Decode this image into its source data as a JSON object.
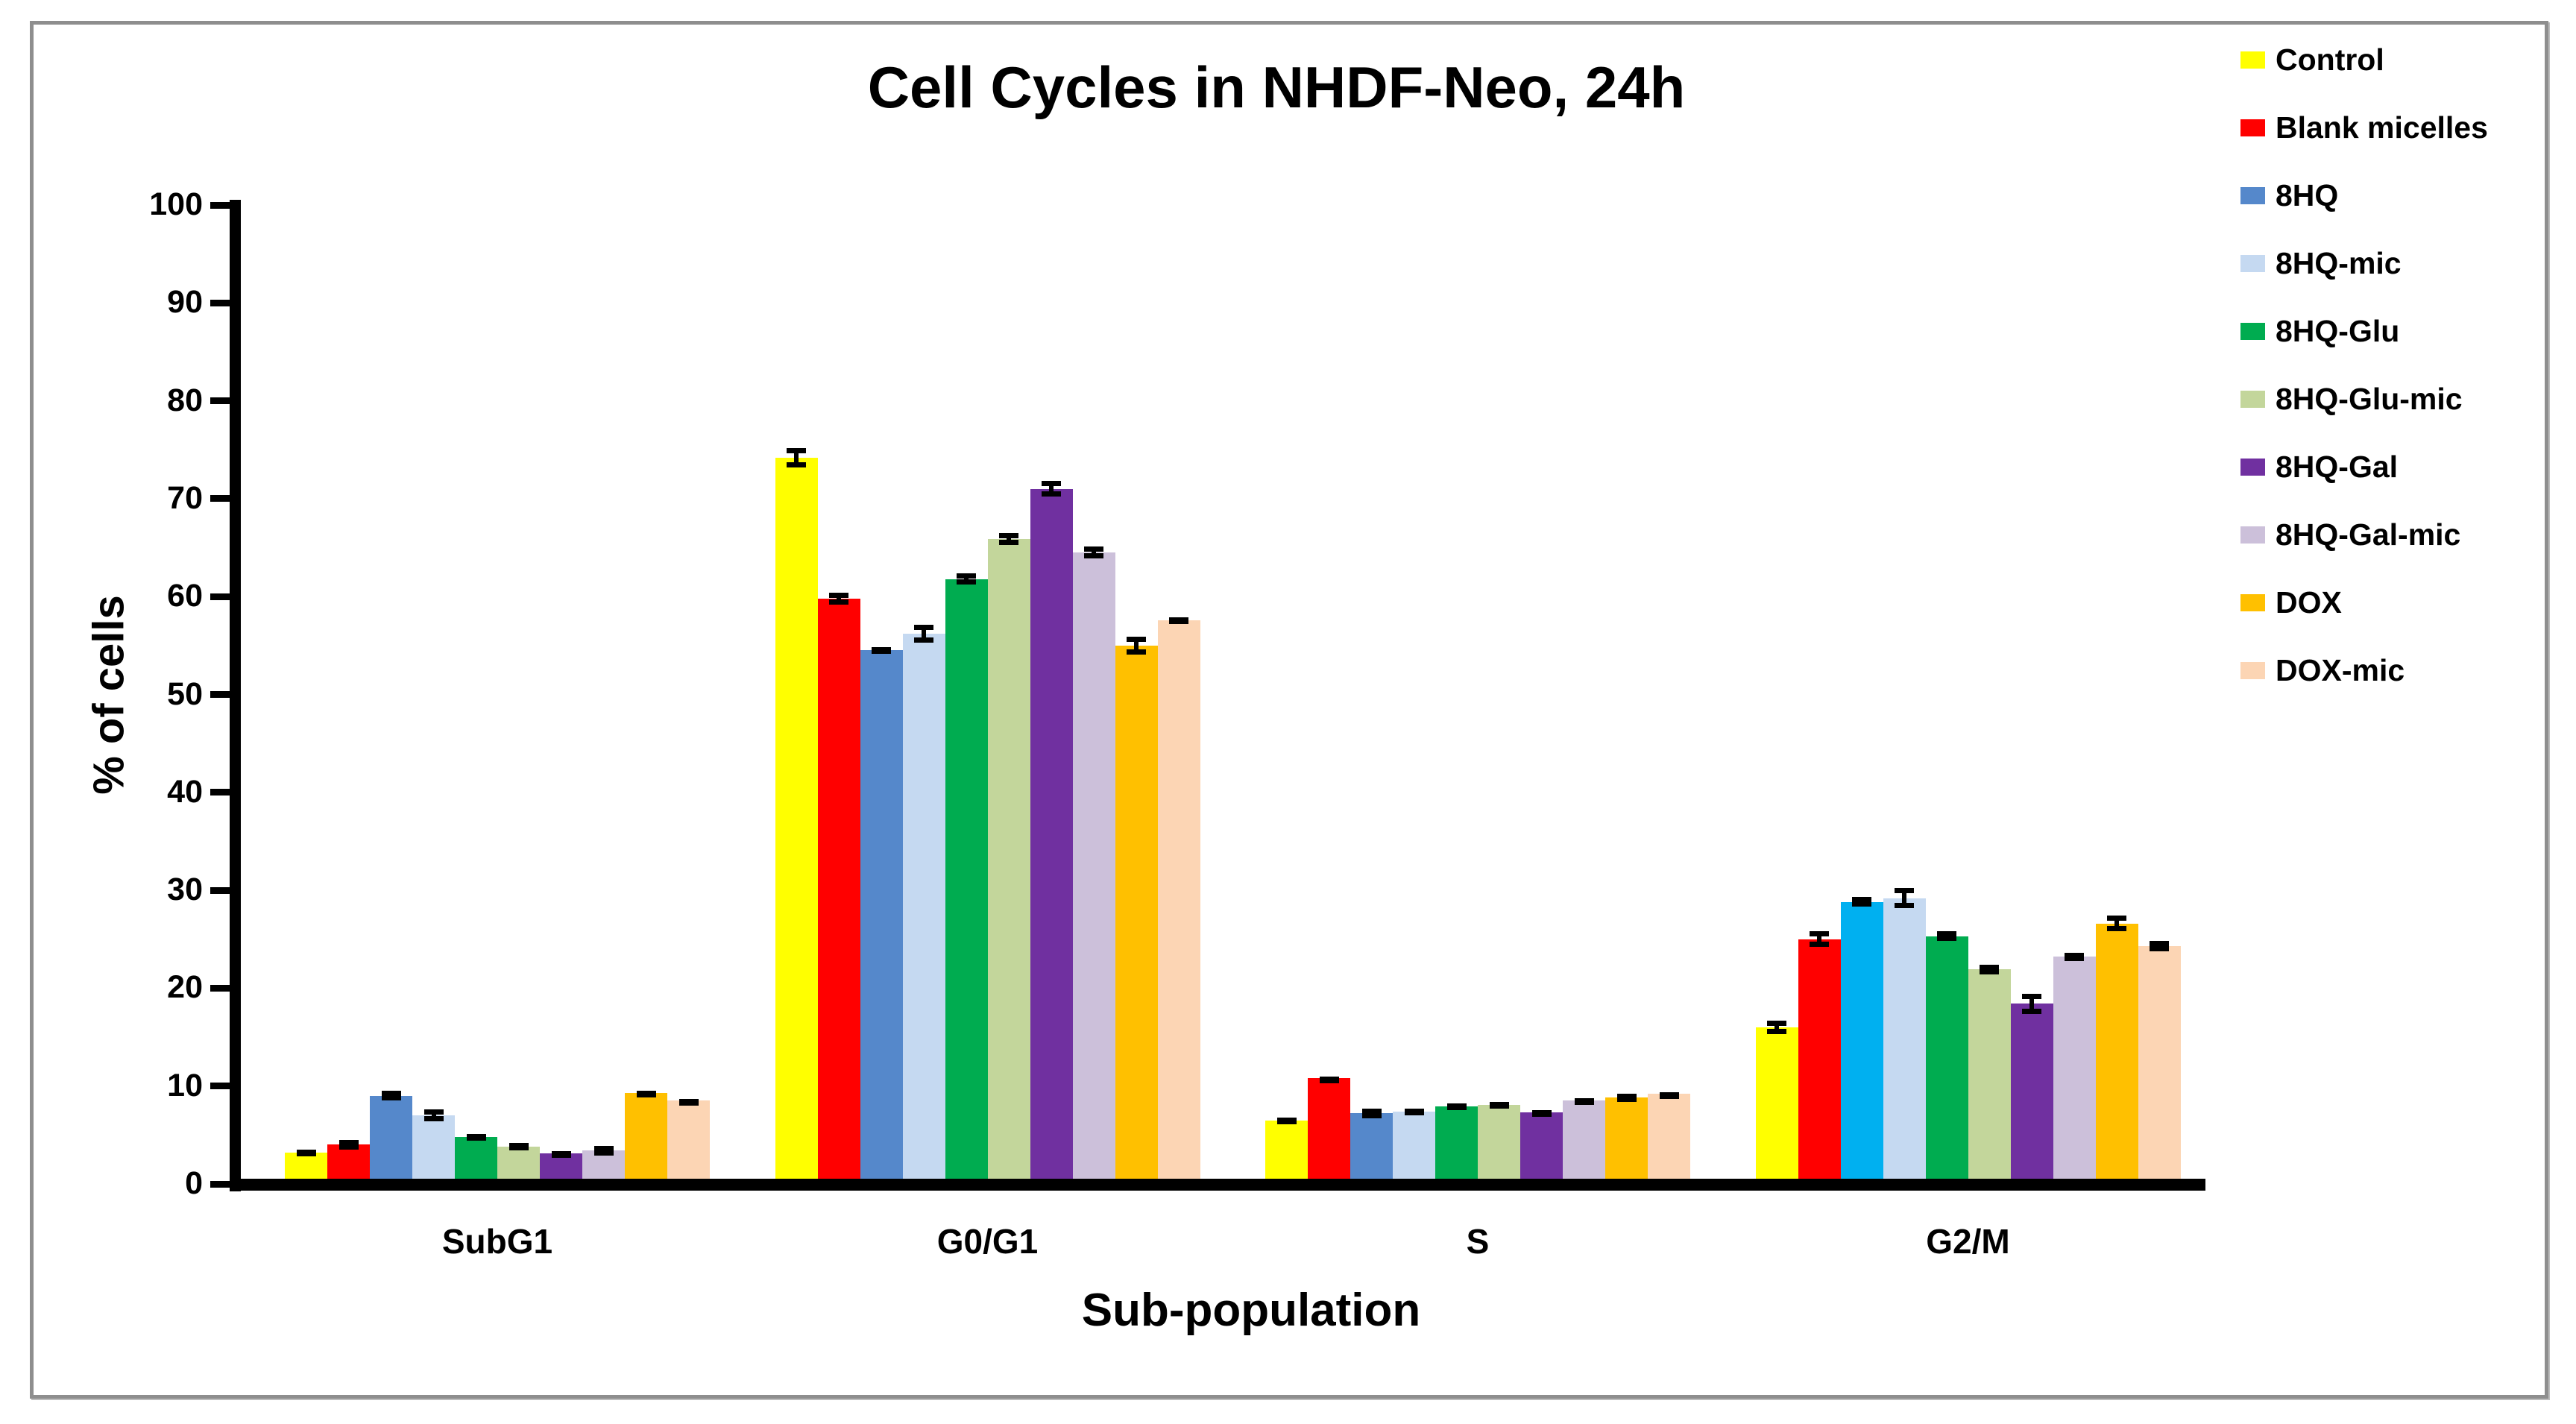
{
  "figure": {
    "type_label": "grouped bar chart with error bars",
    "frame_color": "#8e8e8e",
    "background": "#ffffff"
  },
  "chart_data": {
    "type": "bar",
    "title": "Cell Cycles in NHDF-Neo, 24h",
    "xlabel": "Sub-population",
    "ylabel": "% of cells",
    "ylim": [
      0,
      100
    ],
    "yticks": [
      0,
      10,
      20,
      30,
      40,
      50,
      60,
      70,
      80,
      90,
      100
    ],
    "grid": false,
    "legend_position": "right",
    "error_bars": true,
    "categories": [
      "SubG1",
      "G0/G1",
      "S",
      "G2/M"
    ],
    "series": [
      {
        "name": "Control",
        "color": "#FFFF00",
        "values": [
          3.2,
          74.2,
          6.5,
          16.0
        ],
        "errors": [
          0.3,
          1.0,
          0.3,
          0.7
        ]
      },
      {
        "name": "Blank micelles",
        "color": "#FF0000",
        "values": [
          4.0,
          59.8,
          10.8,
          25.0
        ],
        "errors": [
          0.5,
          0.6,
          0.2,
          0.8
        ]
      },
      {
        "name": "8HQ",
        "color": "#5588CB",
        "values": [
          9.0,
          54.5,
          7.2,
          28.8
        ],
        "errors": [
          0.5,
          0.3,
          0.5,
          0.5
        ]
      },
      {
        "name": "8HQ-mic",
        "color": "#C5D9F1",
        "values": [
          7.0,
          56.2,
          7.4,
          29.2
        ],
        "errors": [
          0.6,
          0.9,
          0.3,
          1.0
        ]
      },
      {
        "name": "8HQ-Glu",
        "color": "#00AC50",
        "values": [
          4.8,
          61.8,
          7.9,
          25.3
        ],
        "errors": [
          0.3,
          0.6,
          0.3,
          0.5
        ]
      },
      {
        "name": "8HQ-Glu-mic",
        "color": "#C3D69B",
        "values": [
          3.8,
          65.9,
          8.1,
          21.9
        ],
        "errors": [
          0.4,
          0.6,
          0.3,
          0.5
        ]
      },
      {
        "name": "8HQ-Gal",
        "color": "#7030A0",
        "values": [
          3.1,
          71.0,
          7.3,
          18.4
        ],
        "errors": [
          0.25,
          0.8,
          0.25,
          1.0
        ]
      },
      {
        "name": "8HQ-Gal-mic",
        "color": "#CCC0DA",
        "values": [
          3.4,
          64.5,
          8.5,
          23.2
        ],
        "errors": [
          0.5,
          0.6,
          0.25,
          0.4
        ]
      },
      {
        "name": "DOX",
        "color": "#FFC000",
        "values": [
          9.3,
          55.0,
          8.8,
          26.6
        ],
        "errors": [
          0.2,
          0.9,
          0.4,
          0.8
        ]
      },
      {
        "name": "DOX-mic",
        "color": "#FCD5B4",
        "values": [
          8.5,
          57.6,
          9.2,
          24.3
        ],
        "errors": [
          0.2,
          0.3,
          0.2,
          0.5
        ]
      }
    ],
    "color_overrides": [
      {
        "series": "8HQ",
        "category": "G2/M",
        "color": "#00B0F0"
      }
    ]
  }
}
